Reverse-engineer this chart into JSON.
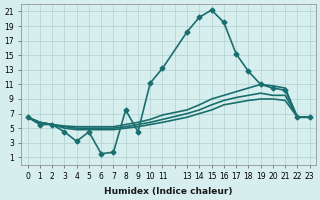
{
  "xlabel": "Humidex (Indice chaleur)",
  "ylabel": "",
  "background_color": "#d6eeee",
  "line_color": "#1a6e6e",
  "xlim": [
    -0.5,
    23.5
  ],
  "ylim": [
    0,
    22
  ],
  "xticks": [
    0,
    1,
    2,
    3,
    4,
    5,
    6,
    7,
    8,
    9,
    10,
    11,
    12,
    13,
    14,
    15,
    16,
    17,
    18,
    19,
    20,
    21,
    22,
    23
  ],
  "xtick_labels": [
    "0",
    "1",
    "2",
    "3",
    "4",
    "5",
    "6",
    "7",
    "8",
    "9",
    "10",
    "11",
    "",
    "13",
    "14",
    "15",
    "16",
    "17",
    "18",
    "19",
    "20",
    "21",
    "22",
    "23"
  ],
  "yticks": [
    1,
    3,
    5,
    7,
    9,
    11,
    13,
    15,
    17,
    19,
    21
  ],
  "series": [
    {
      "x": [
        0,
        1,
        2,
        3,
        4,
        5,
        6,
        7,
        8,
        9,
        10,
        11,
        13,
        14,
        15,
        16,
        17,
        18,
        19,
        20,
        21,
        22,
        23
      ],
      "y": [
        6.5,
        5.5,
        5.5,
        4.5,
        3.2,
        4.5,
        1.5,
        1.7,
        7.5,
        4.5,
        11.2,
        13.2,
        18.2,
        20.2,
        21.2,
        19.5,
        15.2,
        12.8,
        11.0,
        10.5,
        10.2,
        6.5,
        6.5
      ],
      "marker": "D",
      "markersize": 2.5,
      "linewidth": 1.2
    },
    {
      "x": [
        0,
        1,
        2,
        3,
        4,
        5,
        6,
        7,
        8,
        9,
        10,
        11,
        13,
        14,
        15,
        16,
        17,
        18,
        19,
        20,
        21,
        22,
        23
      ],
      "y": [
        6.5,
        5.8,
        5.5,
        5.3,
        5.2,
        5.2,
        5.2,
        5.2,
        5.5,
        5.8,
        6.2,
        6.8,
        7.5,
        8.2,
        9.0,
        9.5,
        10.0,
        10.5,
        11.0,
        10.8,
        10.5,
        6.5,
        6.5
      ],
      "marker": null,
      "markersize": 0,
      "linewidth": 1.2
    },
    {
      "x": [
        0,
        1,
        2,
        3,
        4,
        5,
        6,
        7,
        8,
        9,
        10,
        11,
        13,
        14,
        15,
        16,
        17,
        18,
        19,
        20,
        21,
        22,
        23
      ],
      "y": [
        6.5,
        5.8,
        5.5,
        5.2,
        5.0,
        5.0,
        5.0,
        5.0,
        5.2,
        5.5,
        5.8,
        6.2,
        7.0,
        7.5,
        8.2,
        8.8,
        9.2,
        9.5,
        9.8,
        9.5,
        9.5,
        6.5,
        6.5
      ],
      "marker": null,
      "markersize": 0,
      "linewidth": 1.2
    },
    {
      "x": [
        0,
        1,
        2,
        3,
        4,
        5,
        6,
        7,
        8,
        9,
        10,
        11,
        13,
        14,
        15,
        16,
        17,
        18,
        19,
        20,
        21,
        22,
        23
      ],
      "y": [
        6.5,
        5.8,
        5.5,
        5.0,
        4.8,
        4.8,
        4.8,
        4.8,
        5.0,
        5.2,
        5.5,
        5.8,
        6.5,
        7.0,
        7.5,
        8.2,
        8.5,
        8.8,
        9.0,
        9.0,
        8.8,
        6.5,
        6.5
      ],
      "marker": null,
      "markersize": 0,
      "linewidth": 1.2
    }
  ]
}
